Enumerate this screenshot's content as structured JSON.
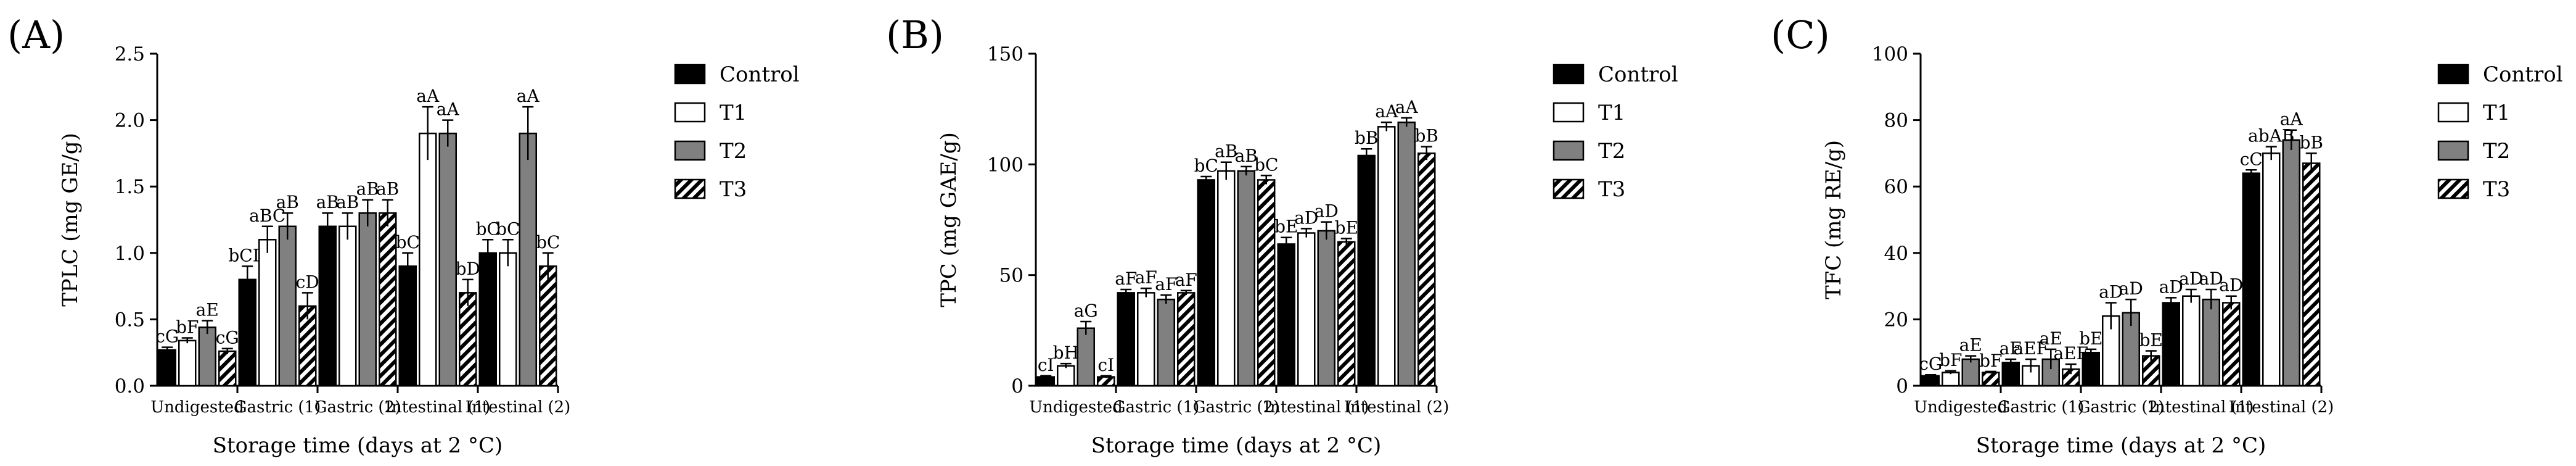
{
  "xlabel": "Storage time (days at 2 °C)",
  "categories": [
    "Undigested",
    "Gastric (1)",
    "Gastric (2)",
    "Intestinal (1)",
    "Intestinal (2)"
  ],
  "legend": [
    "Control",
    "T1",
    "T2",
    "T3"
  ],
  "colors": {
    "Control": "#000000",
    "T1": "#ffffff",
    "T2": "#808080",
    "T3_hatch": "#000000"
  },
  "chart_data": [
    {
      "type": "bar",
      "panel_label": "(A)",
      "ylabel": "TPLC (mg GE/g)",
      "ylim": [
        0,
        2.5
      ],
      "yticks": [
        "0.0",
        "0.5",
        "1.0",
        "1.5",
        "2.0",
        "2.5"
      ],
      "categories": [
        "Undigested",
        "Gastric (1)",
        "Gastric (2)",
        "Intestinal (1)",
        "Intestinal (2)"
      ],
      "series": [
        {
          "name": "Control",
          "values": [
            0.27,
            0.8,
            1.2,
            0.9,
            1.0
          ],
          "errors": [
            0.02,
            0.1,
            0.1,
            0.1,
            0.1
          ],
          "labels": [
            "cG",
            "bCD",
            "aB",
            "bC",
            "bC"
          ]
        },
        {
          "name": "T1",
          "values": [
            0.34,
            1.1,
            1.2,
            1.9,
            1.0
          ],
          "errors": [
            0.02,
            0.1,
            0.1,
            0.2,
            0.1
          ],
          "labels": [
            "bF",
            "aBC",
            "aB",
            "aA",
            "bC"
          ]
        },
        {
          "name": "T2",
          "values": [
            0.44,
            1.2,
            1.3,
            1.9,
            1.9
          ],
          "errors": [
            0.05,
            0.1,
            0.1,
            0.1,
            0.2
          ],
          "labels": [
            "aE",
            "aB",
            "aB",
            "aA",
            "aA"
          ]
        },
        {
          "name": "T3",
          "values": [
            0.26,
            0.6,
            1.3,
            0.7,
            0.9
          ],
          "errors": [
            0.02,
            0.1,
            0.1,
            0.1,
            0.1
          ],
          "labels": [
            "cG",
            "cD",
            "aB",
            "bD",
            "bC"
          ]
        }
      ]
    },
    {
      "type": "bar",
      "panel_label": "(B)",
      "ylabel": "TPC (mg GAE/g)",
      "ylim": [
        0,
        150
      ],
      "yticks": [
        "0",
        "50",
        "100",
        "150"
      ],
      "categories": [
        "Undigested",
        "Gastric (1)",
        "Gastric (2)",
        "Intestinal (1)",
        "Intestinal (2)"
      ],
      "series": [
        {
          "name": "Control",
          "values": [
            4,
            42,
            93,
            64,
            104
          ],
          "errors": [
            0.5,
            1.5,
            1.5,
            3,
            3
          ],
          "labels": [
            "cI",
            "aF",
            "bC",
            "bE",
            "bB"
          ]
        },
        {
          "name": "T1",
          "values": [
            9,
            42,
            97,
            69,
            117
          ],
          "errors": [
            1,
            2,
            4,
            2,
            2
          ],
          "labels": [
            "bH",
            "aF",
            "aB",
            "aD",
            "aA"
          ]
        },
        {
          "name": "T2",
          "values": [
            26,
            39,
            97,
            70,
            119
          ],
          "errors": [
            3,
            2,
            2,
            4,
            2
          ],
          "labels": [
            "aG",
            "aF",
            "aB",
            "aD",
            "aA"
          ]
        },
        {
          "name": "T3",
          "values": [
            4,
            42,
            93,
            65,
            105
          ],
          "errors": [
            0.5,
            1,
            2,
            1.5,
            3
          ],
          "labels": [
            "cI",
            "aF",
            "bC",
            "bE",
            "bB"
          ]
        }
      ]
    },
    {
      "type": "bar",
      "panel_label": "(C)",
      "ylabel": "TFC (mg RE/g)",
      "ylim": [
        0,
        100
      ],
      "yticks": [
        "0",
        "20",
        "40",
        "60",
        "80",
        "100"
      ],
      "categories": [
        "Undigested",
        "Gastric (1)",
        "Gastric (2)",
        "Intestinal (1)",
        "Intestinal (2)"
      ],
      "series": [
        {
          "name": "Control",
          "values": [
            3,
            7,
            10,
            25,
            64
          ],
          "errors": [
            0.3,
            1,
            1,
            1.5,
            1
          ],
          "labels": [
            "cG",
            "aE",
            "bE",
            "aD",
            "cC"
          ]
        },
        {
          "name": "T1",
          "values": [
            4,
            6,
            21,
            27,
            70
          ],
          "errors": [
            0.5,
            2,
            4,
            2,
            2
          ],
          "labels": [
            "bF",
            "aEF",
            "aD",
            "aD",
            "abAB"
          ]
        },
        {
          "name": "T2",
          "values": [
            8,
            8,
            22,
            26,
            74
          ],
          "errors": [
            1,
            3,
            4,
            3,
            3
          ],
          "labels": [
            "aE",
            "aE",
            "aD",
            "aD",
            "aA"
          ]
        },
        {
          "name": "T3",
          "values": [
            4,
            5,
            9,
            25,
            67
          ],
          "errors": [
            0.3,
            1.5,
            1.5,
            2,
            3
          ],
          "labels": [
            "bF",
            "aEF",
            "bE",
            "aD",
            "bB"
          ]
        }
      ]
    }
  ]
}
